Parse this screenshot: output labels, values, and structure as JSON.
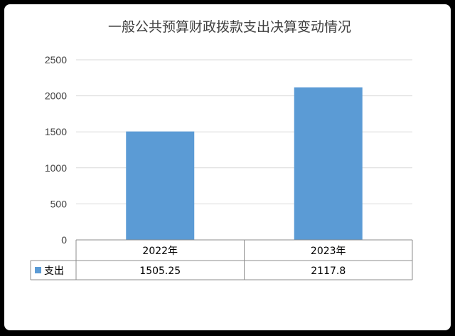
{
  "chart_data": {
    "type": "bar",
    "title": "一般公共预算财政拨款支出决算变动情况",
    "categories": [
      "2022年",
      "2023年"
    ],
    "series": [
      {
        "name": "支出",
        "values": [
          1505.25,
          2117.8
        ],
        "color": "#5B9BD5"
      }
    ],
    "value_labels": [
      "1505.25",
      "2117.8"
    ],
    "ylim": [
      0,
      2500
    ],
    "yticks": [
      0,
      500,
      1000,
      1500,
      2000,
      2500
    ],
    "grid": true,
    "legend": "data-table"
  }
}
